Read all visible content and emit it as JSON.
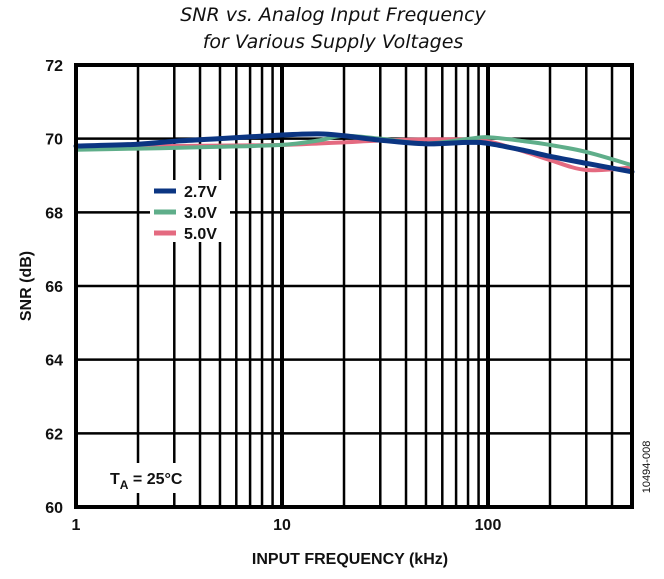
{
  "chart_data": {
    "type": "line",
    "title": [
      "SNR vs. Analog Input Frequency",
      "for Various Supply Voltages"
    ],
    "xlabel": "INPUT FREQUENCY (kHz)",
    "ylabel": "SNR (dB)",
    "xscale": "log",
    "xlim": [
      1,
      500
    ],
    "ylim": [
      60,
      72
    ],
    "xticks": [
      1,
      10,
      100
    ],
    "xtick_labels": [
      "1",
      "10",
      "100"
    ],
    "yticks": [
      60,
      62,
      64,
      66,
      68,
      70,
      72
    ],
    "ytick_labels": [
      "60",
      "62",
      "64",
      "66",
      "68",
      "70",
      "72"
    ],
    "grid": true,
    "legend_position": "upper-left",
    "annotation": {
      "text": "T",
      "subscript": "A",
      "suffix": " = 25°C"
    },
    "figure_id": "10494-008",
    "series": [
      {
        "name": "2.7V",
        "color": "#0b3582",
        "x": [
          1,
          2,
          3,
          5,
          10,
          15,
          20,
          30,
          50,
          80,
          100,
          150,
          200,
          300,
          500
        ],
        "y": [
          69.8,
          69.85,
          69.93,
          70.0,
          70.1,
          70.13,
          70.08,
          69.96,
          69.86,
          69.9,
          69.87,
          69.68,
          69.52,
          69.33,
          69.1
        ]
      },
      {
        "name": "3.0V",
        "color": "#5fae8a",
        "x": [
          1,
          2,
          3,
          5,
          10,
          15,
          20,
          30,
          50,
          80,
          100,
          150,
          200,
          300,
          500
        ],
        "y": [
          69.7,
          69.73,
          69.75,
          69.78,
          69.83,
          69.95,
          70.08,
          70.0,
          69.87,
          69.99,
          70.04,
          69.93,
          69.83,
          69.64,
          69.28
        ]
      },
      {
        "name": "5.0V",
        "color": "#e46a80",
        "x": [
          1,
          2,
          3,
          5,
          10,
          15,
          20,
          30,
          50,
          80,
          100,
          150,
          200,
          300,
          500
        ],
        "y": [
          69.8,
          69.8,
          69.8,
          69.81,
          69.83,
          69.87,
          69.9,
          69.95,
          69.98,
          69.98,
          69.93,
          69.65,
          69.42,
          69.15,
          69.22
        ]
      }
    ]
  }
}
